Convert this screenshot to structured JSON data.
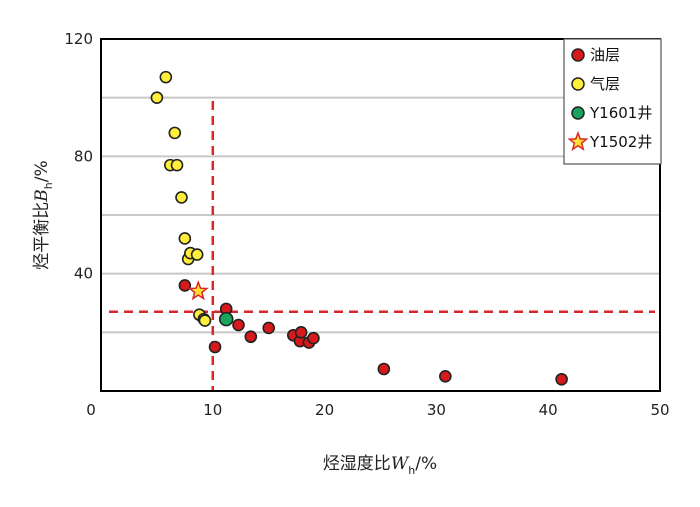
{
  "chart_data": {
    "type": "scatter",
    "title": "",
    "xlabel": {
      "main": "烃湿度比",
      "symbol": "W",
      "subscript": "h",
      "unit": "/%"
    },
    "ylabel": {
      "main": "烃平衡比",
      "symbol": "B",
      "subscript": "h",
      "unit": "/%"
    },
    "xlim": [
      0,
      50
    ],
    "ylim": [
      0,
      120
    ],
    "xticks": [
      0,
      10,
      20,
      30,
      40,
      50
    ],
    "yticks": [
      40,
      80,
      120
    ],
    "grid": {
      "y_lines": [
        20,
        40,
        60,
        80,
        100
      ],
      "x_lines": []
    },
    "legend_position": "top-right",
    "reference_lines": [
      {
        "orientation": "vertical",
        "value": 10,
        "color": "#d9262b"
      },
      {
        "orientation": "horizontal",
        "value": 27,
        "color": "#d9262b"
      }
    ],
    "series": [
      {
        "name": "油层",
        "marker": "circle",
        "color": "#d7191c",
        "points": [
          [
            7.5,
            36
          ],
          [
            8.0,
            47
          ],
          [
            10.2,
            15
          ],
          [
            11.2,
            28
          ],
          [
            12.3,
            22.5
          ],
          [
            13.4,
            18.5
          ],
          [
            15.0,
            21.5
          ],
          [
            17.2,
            19
          ],
          [
            17.8,
            17
          ],
          [
            17.9,
            20
          ],
          [
            18.6,
            16.5
          ],
          [
            19.0,
            18
          ],
          [
            25.3,
            7.5
          ],
          [
            30.8,
            5
          ],
          [
            41.2,
            4
          ]
        ]
      },
      {
        "name": "气层",
        "marker": "circle",
        "color": "#ffef3a",
        "points": [
          [
            5.0,
            100
          ],
          [
            5.8,
            107
          ],
          [
            6.2,
            77
          ],
          [
            6.6,
            88
          ],
          [
            6.8,
            77
          ],
          [
            7.2,
            66
          ],
          [
            7.5,
            52
          ],
          [
            7.8,
            45
          ],
          [
            8.0,
            47
          ],
          [
            8.6,
            46.5
          ],
          [
            8.8,
            26
          ],
          [
            9.2,
            24.5
          ],
          [
            9.3,
            24
          ]
        ]
      },
      {
        "name": "Y1601井",
        "marker": "circle",
        "color": "#1aa35b",
        "points": [
          [
            11.2,
            24.5
          ]
        ]
      },
      {
        "name": "Y1502井",
        "marker": "star",
        "color": "#ffe233",
        "points": [
          [
            8.7,
            34
          ]
        ]
      }
    ]
  },
  "colors": {
    "axis": "#000000",
    "grid": "#c8c8c8",
    "marker_edge": "#222222",
    "star_edge": "#d9262b",
    "reference": "#d9262b"
  }
}
